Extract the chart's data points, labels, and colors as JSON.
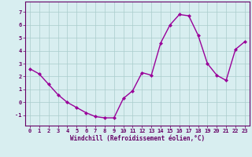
{
  "x": [
    0,
    1,
    2,
    3,
    4,
    5,
    6,
    7,
    8,
    9,
    10,
    11,
    12,
    13,
    14,
    15,
    16,
    17,
    18,
    19,
    20,
    21,
    22,
    23
  ],
  "y": [
    2.6,
    2.2,
    1.4,
    0.6,
    0.0,
    -0.4,
    -0.8,
    -1.1,
    -1.2,
    -1.2,
    0.3,
    0.9,
    2.3,
    2.1,
    4.6,
    6.0,
    6.8,
    6.7,
    5.2,
    3.0,
    2.1,
    1.7,
    4.1,
    4.7
  ],
  "line_color": "#990099",
  "marker": "D",
  "markersize": 2.0,
  "linewidth": 1.0,
  "xlabel": "Windchill (Refroidissement éolien,°C)",
  "xlabel_fontsize": 5.5,
  "ylim": [
    -1.8,
    7.8
  ],
  "xlim": [
    -0.5,
    23.5
  ],
  "yticks": [
    -1,
    0,
    1,
    2,
    3,
    4,
    5,
    6,
    7
  ],
  "xticks": [
    0,
    1,
    2,
    3,
    4,
    5,
    6,
    7,
    8,
    9,
    10,
    11,
    12,
    13,
    14,
    15,
    16,
    17,
    18,
    19,
    20,
    21,
    22,
    23
  ],
  "tick_fontsize": 5.0,
  "bg_color": "#d8eef0",
  "grid_color": "#aacccc",
  "axes_color": "#660066",
  "spine_color": "#660066"
}
